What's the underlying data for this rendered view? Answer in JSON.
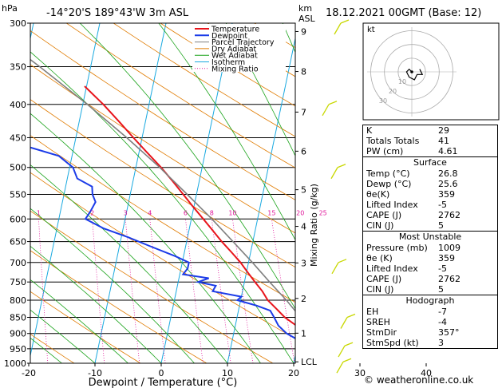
{
  "header": {
    "left_axis_unit": "hPa",
    "location": "-14°20'S  189°43'W  3m  ASL",
    "km_label": "km",
    "asl_label": "ASL",
    "datetime": "18.12.2021  00GMT  (Base: 12)"
  },
  "legend": [
    {
      "label": "Temperature",
      "color": "#e8141b"
    },
    {
      "label": "Dewpoint",
      "color": "#1b3be8"
    },
    {
      "label": "Parcel Trajectory",
      "color": "#7f7f7f"
    },
    {
      "label": "Dry Adiabat",
      "color": "#e07b00"
    },
    {
      "label": "Wet Adiabat",
      "color": "#1aa31a"
    },
    {
      "label": "Isotherm",
      "color": "#19a9e0"
    },
    {
      "label": "Mixing Ratio",
      "color": "#e0169a"
    }
  ],
  "hodograph": {
    "label": "kt",
    "ring_labels": [
      "10",
      "20",
      "30"
    ]
  },
  "indices": [
    {
      "label": "K",
      "value": "29"
    },
    {
      "label": "Totals Totals",
      "value": "41"
    },
    {
      "label": "PW (cm)",
      "value": "4.61"
    }
  ],
  "surface": {
    "title": "Surface",
    "rows": [
      {
        "label": "Temp (°C)",
        "value": "26.8"
      },
      {
        "label": "Dewp (°C)",
        "value": "25.6"
      },
      {
        "label": "θe(K)",
        "value": "359"
      },
      {
        "label": "Lifted Index",
        "value": "-5"
      },
      {
        "label": "CAPE (J)",
        "value": "2762"
      },
      {
        "label": "CIN (J)",
        "value": "5"
      }
    ]
  },
  "most_unstable": {
    "title": "Most Unstable",
    "rows": [
      {
        "label": "Pressure (mb)",
        "value": "1009"
      },
      {
        "label": "θe (K)",
        "value": "359"
      },
      {
        "label": "Lifted Index",
        "value": "-5"
      },
      {
        "label": "CAPE (J)",
        "value": "2762"
      },
      {
        "label": "CIN (J)",
        "value": "5"
      }
    ]
  },
  "hodograph_table": {
    "title": "Hodograph",
    "rows": [
      {
        "label": "EH",
        "value": "-7"
      },
      {
        "label": "SREH",
        "value": "-4"
      },
      {
        "label": "StmDir",
        "value": "357°"
      },
      {
        "label": "StmSpd (kt)",
        "value": "3"
      }
    ]
  },
  "footer": "© weatheronline.co.uk",
  "chart_data": {
    "type": "line",
    "title": "",
    "xlabel": "Dewpoint / Temperature (°C)",
    "ylabel": "hPa",
    "right_axis_label": "Mixing Ratio (g/kg)",
    "ylim": [
      1000,
      300
    ],
    "x_ticks": [
      -30,
      -20,
      -10,
      0,
      10,
      20,
      30,
      40
    ],
    "pressure_ticks": [
      300,
      350,
      400,
      450,
      500,
      550,
      600,
      650,
      700,
      750,
      800,
      850,
      900,
      950,
      1000
    ],
    "km_ticks": [
      {
        "label": "9",
        "p": 309
      },
      {
        "label": "8",
        "p": 356
      },
      {
        "label": "7",
        "p": 411
      },
      {
        "label": "6",
        "p": 472
      },
      {
        "label": "5",
        "p": 541
      },
      {
        "label": "4",
        "p": 616
      },
      {
        "label": "3",
        "p": 701
      },
      {
        "label": "2",
        "p": 795
      },
      {
        "label": "1",
        "p": 899
      },
      {
        "label": "LCL",
        "p": 995
      }
    ],
    "mixing_ratio_labels": [
      "1",
      "2",
      "3",
      "4",
      "6",
      "8",
      "10",
      "15",
      "20",
      "25"
    ],
    "series": [
      {
        "name": "Temperature",
        "color": "#e8141b",
        "points": [
          [
            1000,
            26.8
          ],
          [
            975,
            24.9
          ],
          [
            950,
            22.4
          ],
          [
            925,
            21.5
          ],
          [
            900,
            20.3
          ],
          [
            875,
            19.2
          ],
          [
            850,
            17.2
          ],
          [
            825,
            15.7
          ],
          [
            800,
            14.1
          ],
          [
            775,
            13.0
          ],
          [
            750,
            11.6
          ],
          [
            725,
            10.2
          ],
          [
            700,
            8.8
          ],
          [
            675,
            7.1
          ],
          [
            650,
            5.3
          ],
          [
            625,
            3.6
          ],
          [
            600,
            1.8
          ],
          [
            575,
            -0.1
          ],
          [
            550,
            -2.0
          ],
          [
            525,
            -4.0
          ],
          [
            500,
            -6.2
          ],
          [
            475,
            -8.7
          ],
          [
            450,
            -11.3
          ],
          [
            425,
            -14.0
          ],
          [
            400,
            -16.9
          ],
          [
            375,
            -20.3
          ]
        ]
      },
      {
        "name": "Dewpoint",
        "color": "#1b3be8",
        "points": [
          [
            1000,
            25.6
          ],
          [
            985,
            23.5
          ],
          [
            970,
            22.7
          ],
          [
            950,
            22.0
          ],
          [
            925,
            20.3
          ],
          [
            900,
            18.0
          ],
          [
            875,
            16.5
          ],
          [
            850,
            15.6
          ],
          [
            830,
            14.8
          ],
          [
            815,
            12.5
          ],
          [
            800,
            9.5
          ],
          [
            790,
            10.0
          ],
          [
            775,
            5.5
          ],
          [
            760,
            5.8
          ],
          [
            750,
            3.0
          ],
          [
            740,
            4.5
          ],
          [
            730,
            0.5
          ],
          [
            715,
            1.0
          ],
          [
            700,
            1.0
          ],
          [
            685,
            -1.2
          ],
          [
            660,
            -5.5
          ],
          [
            640,
            -9.0
          ],
          [
            620,
            -13.0
          ],
          [
            600,
            -16.0
          ],
          [
            585,
            -15.5
          ],
          [
            565,
            -15.0
          ],
          [
            550,
            -15.7
          ],
          [
            535,
            -16.0
          ],
          [
            520,
            -18.5
          ],
          [
            500,
            -19.5
          ],
          [
            480,
            -22.0
          ],
          [
            460,
            -28.5
          ],
          [
            445,
            -27.5
          ],
          [
            425,
            -32.0
          ],
          [
            410,
            -33.0
          ],
          [
            400,
            -34.5
          ],
          [
            385,
            -37.0
          ],
          [
            370,
            -38.5
          ],
          [
            355,
            -43.0
          ],
          [
            340,
            -44.5
          ],
          [
            330,
            -44.0
          ],
          [
            320,
            -48.5
          ],
          [
            310,
            -43.0
          ],
          [
            300,
            -44.0
          ]
        ]
      },
      {
        "name": "Parcel Trajectory",
        "color": "#7f7f7f",
        "points": [
          [
            1000,
            26.8
          ],
          [
            990,
            25.8
          ],
          [
            950,
            24.2
          ],
          [
            900,
            22.0
          ],
          [
            850,
            19.6
          ],
          [
            800,
            16.9
          ],
          [
            750,
            13.8
          ],
          [
            700,
            10.6
          ],
          [
            650,
            7.0
          ],
          [
            600,
            3.1
          ],
          [
            550,
            -1.4
          ],
          [
            500,
            -6.4
          ],
          [
            450,
            -12.3
          ],
          [
            400,
            -19.3
          ],
          [
            350,
            -27.7
          ],
          [
            300,
            -37.7
          ]
        ]
      }
    ],
    "wind_barbs_pressure": [
      995,
      940,
      850,
      700,
      500,
      400,
      300
    ],
    "hodograph_points_kt": [
      [
        0,
        0
      ],
      [
        -1,
        1
      ],
      [
        -2,
        0
      ],
      [
        -1,
        -2
      ],
      [
        1,
        -3
      ],
      [
        2,
        -1
      ],
      [
        4,
        -1
      ],
      [
        3,
        1
      ]
    ]
  }
}
